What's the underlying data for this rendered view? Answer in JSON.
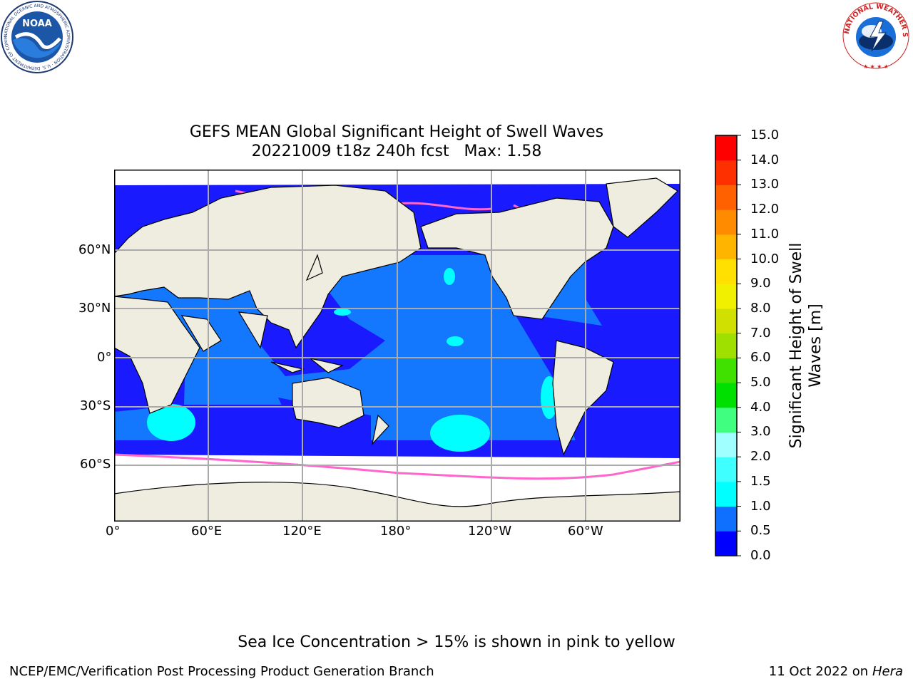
{
  "title": {
    "line1": "GEFS MEAN Global Significant Height of Swell Waves",
    "line2": "20221009 t18z 240h fcst   Max: 1.58"
  },
  "map": {
    "projection": "equirectangular",
    "lon_range": [
      0,
      360
    ],
    "lat_range": [
      -90,
      90
    ],
    "gridlines": true,
    "x_ticks": [
      "0°",
      "60°E",
      "120°E",
      "180°",
      "120°W",
      "60°W"
    ],
    "y_ticks": [
      "60°N",
      "30°N",
      "0°",
      "30°S",
      "60°S"
    ],
    "colors": {
      "land": "#eeeddf",
      "ocean_0_0.5": "#1a1aff",
      "ocean_0.5_1.0": "#1478ff",
      "ocean_1.0_1.5": "#00ffff",
      "sea_ice": "#ff66cc",
      "no_data": "#ffffff",
      "grid": "#aaaaaa"
    }
  },
  "colorbar": {
    "label": "Significant Height of Swell Waves [m]",
    "label_line1": "Significant Height of Swell",
    "label_line2": "Waves [m]",
    "ticks": [
      "0.0",
      "0.5",
      "1.0",
      "1.5",
      "2.0",
      "3.0",
      "4.0",
      "5.0",
      "6.0",
      "7.0",
      "8.0",
      "9.0",
      "10.0",
      "11.0",
      "12.0",
      "13.0",
      "14.0",
      "15.0"
    ],
    "colors": [
      "#0000ff",
      "#0f6fff",
      "#00ffff",
      "#40ffff",
      "#a0ffff",
      "#40ff80",
      "#00e000",
      "#40e000",
      "#a0e000",
      "#d0e000",
      "#f0f000",
      "#ffe000",
      "#ffb400",
      "#ff8c00",
      "#ff6000",
      "#ff3000",
      "#ff0000"
    ]
  },
  "logos": {
    "noaa_text": "NOAA",
    "noaa_ring": "NATIONAL OCEANIC AND ATMOSPHERIC ADMINISTRATION · U.S. DEPARTMENT OF COMMERCE",
    "nws_ring": "NATIONAL WEATHER SERVICE"
  },
  "footer": {
    "note": "Sea Ice Concentration > 15% is shown in pink to yellow",
    "left": "NCEP/EMC/Verification Post Processing Product Generation Branch",
    "right_prefix": "11 Oct 2022 on ",
    "right_host": "Hera"
  }
}
